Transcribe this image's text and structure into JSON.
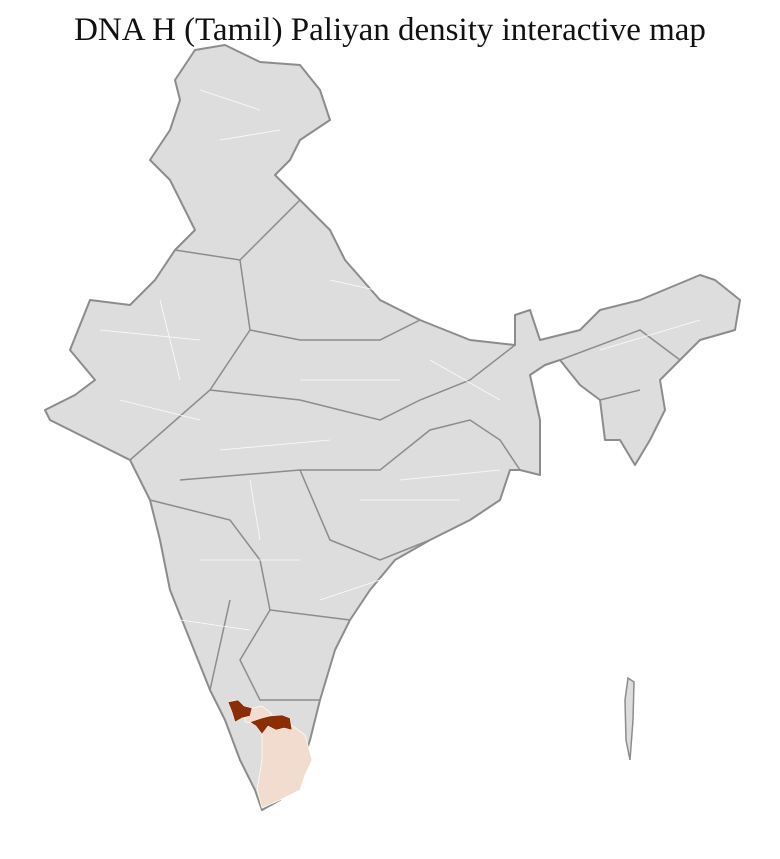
{
  "title": "DNA H (Tamil) Paliyan density interactive map",
  "colors": {
    "base_fill": "#dddddd",
    "border": "#8c8c8c",
    "district_lines": "#ffffff",
    "high_density": "#8b2e05",
    "low_density": "#f2dcd0"
  },
  "regions": [
    {
      "name": "high-density-district",
      "level": "high"
    },
    {
      "name": "high-density-district",
      "level": "high"
    },
    {
      "name": "low-density-district",
      "level": "low"
    },
    {
      "name": "low-density-district",
      "level": "low"
    }
  ]
}
